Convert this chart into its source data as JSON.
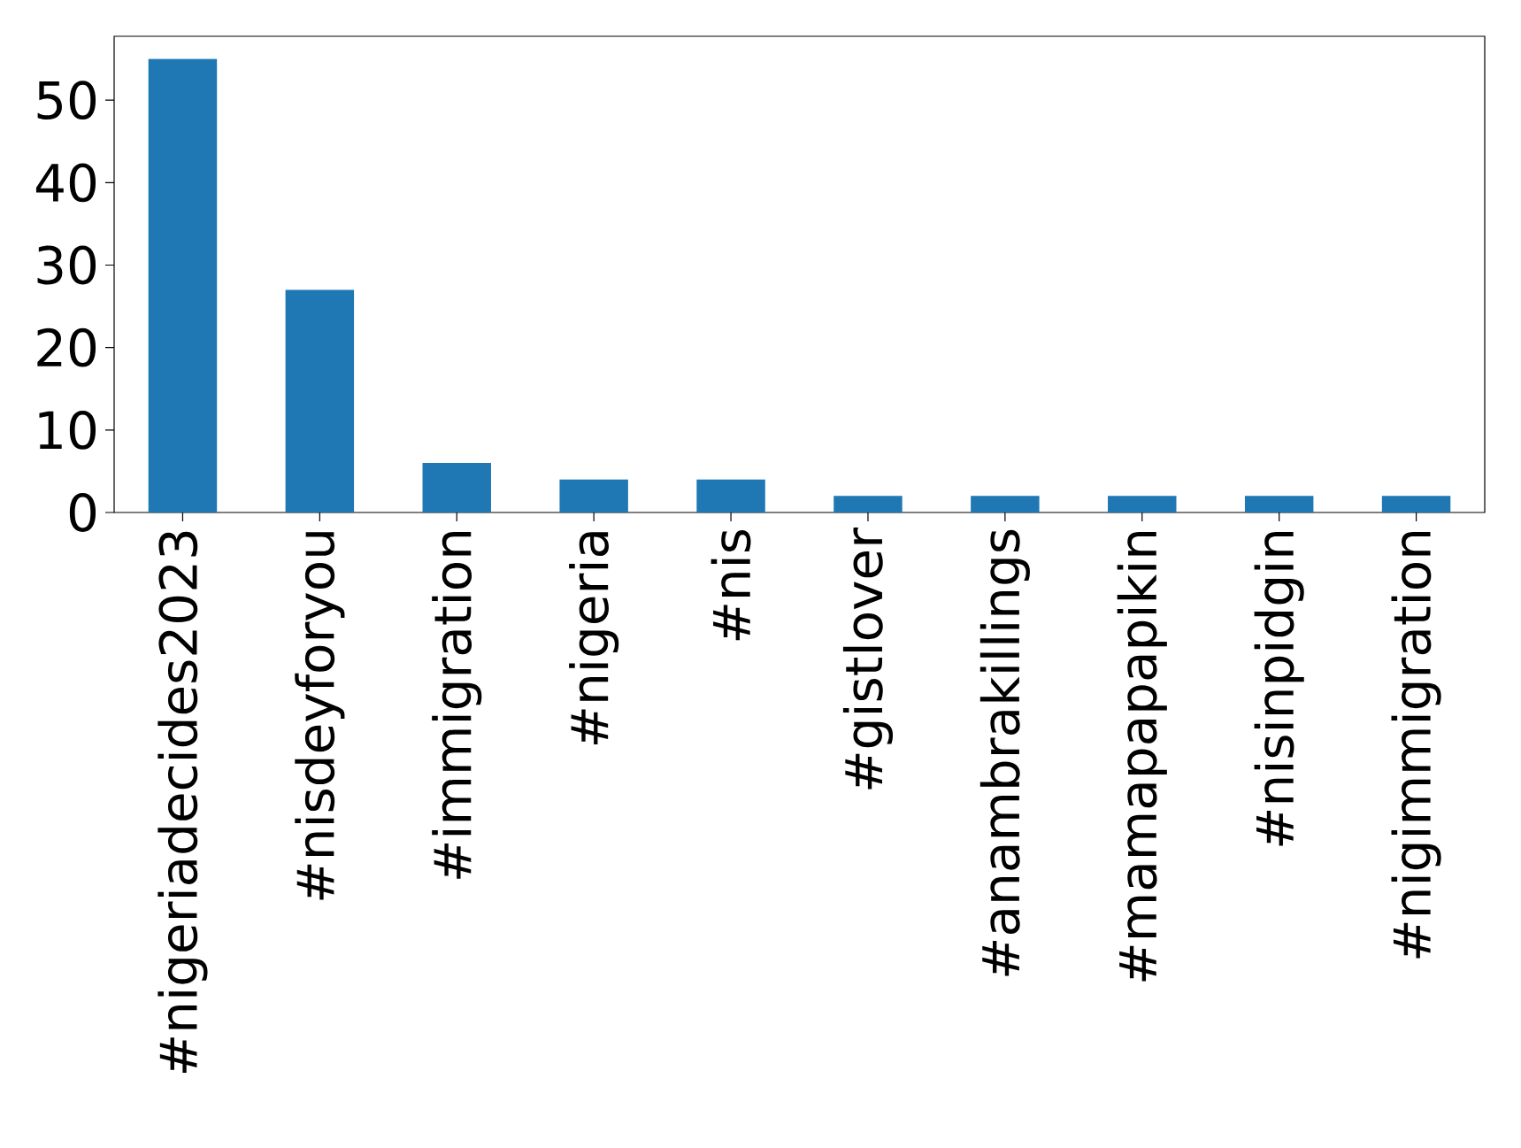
{
  "chart_data": {
    "type": "bar",
    "categories": [
      "#nigeriadecides2023",
      "#nisdeyforyou",
      "#immigration",
      "#nigeria",
      "#nis",
      "#gistlover",
      "#anambrakillings",
      "#mamapapapikin",
      "#nisinpidgin",
      "#nigimmigration"
    ],
    "values": [
      55,
      27,
      6,
      4,
      4,
      2,
      2,
      2,
      2,
      2
    ],
    "color": "#1f77b4",
    "ylim": [
      0,
      57.75
    ],
    "yticks": [
      0,
      10,
      20,
      30,
      40,
      50
    ]
  }
}
